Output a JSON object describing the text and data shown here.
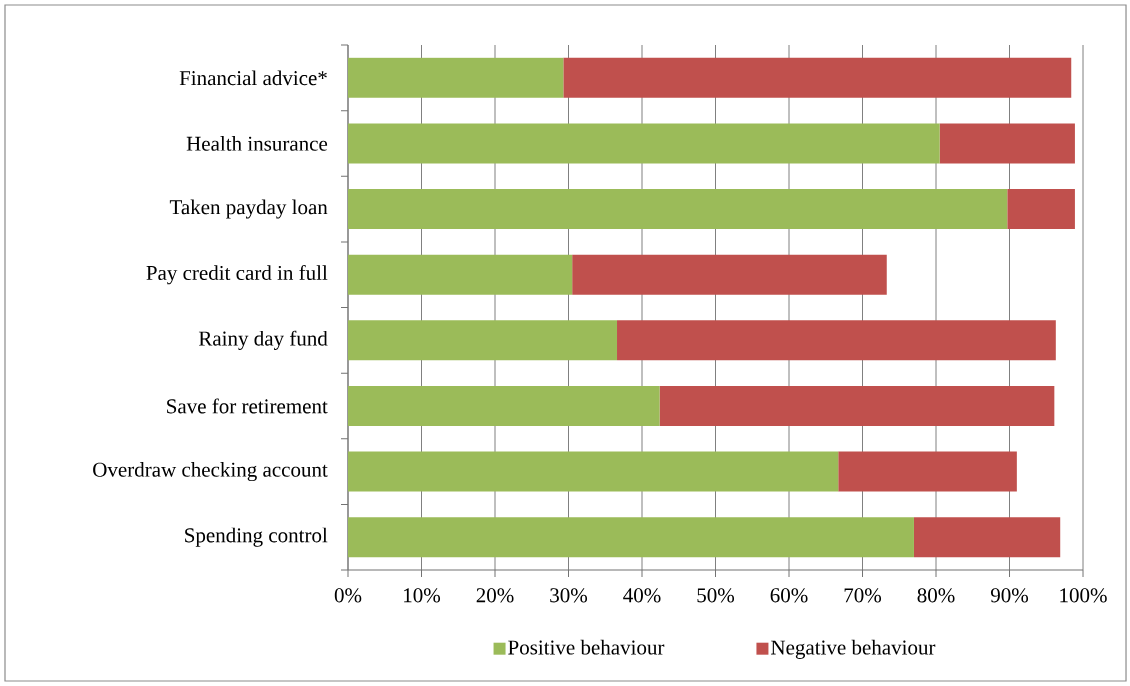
{
  "chart_data": {
    "type": "bar",
    "orientation": "horizontal",
    "stacked": true,
    "categories": [
      "Financial advice*",
      "Health insurance",
      "Taken payday loan",
      "Pay credit card in full",
      "Rainy day fund",
      "Save for retirement",
      "Overdraw checking account",
      "Spending control"
    ],
    "series": [
      {
        "name": "Positive behaviour",
        "color": "#9bbb59",
        "values": [
          29.3,
          80.5,
          89.7,
          30.5,
          36.6,
          42.4,
          66.7,
          77.0
        ]
      },
      {
        "name": "Negative behaviour",
        "color": "#c0504d",
        "values": [
          69.1,
          18.4,
          9.2,
          42.8,
          59.7,
          53.7,
          24.3,
          19.9
        ]
      }
    ],
    "xlim": [
      0,
      100
    ],
    "xticks": [
      {
        "value": 0,
        "label": "0%"
      },
      {
        "value": 10,
        "label": "10%"
      },
      {
        "value": 20,
        "label": "20%"
      },
      {
        "value": 30,
        "label": "30%"
      },
      {
        "value": 40,
        "label": "40%"
      },
      {
        "value": 50,
        "label": "50%"
      },
      {
        "value": 60,
        "label": "60%"
      },
      {
        "value": 70,
        "label": "70%"
      },
      {
        "value": 80,
        "label": "80%"
      },
      {
        "value": 90,
        "label": "90%"
      },
      {
        "value": 100,
        "label": "100%"
      }
    ],
    "grid": "x",
    "legend": "bottom"
  }
}
